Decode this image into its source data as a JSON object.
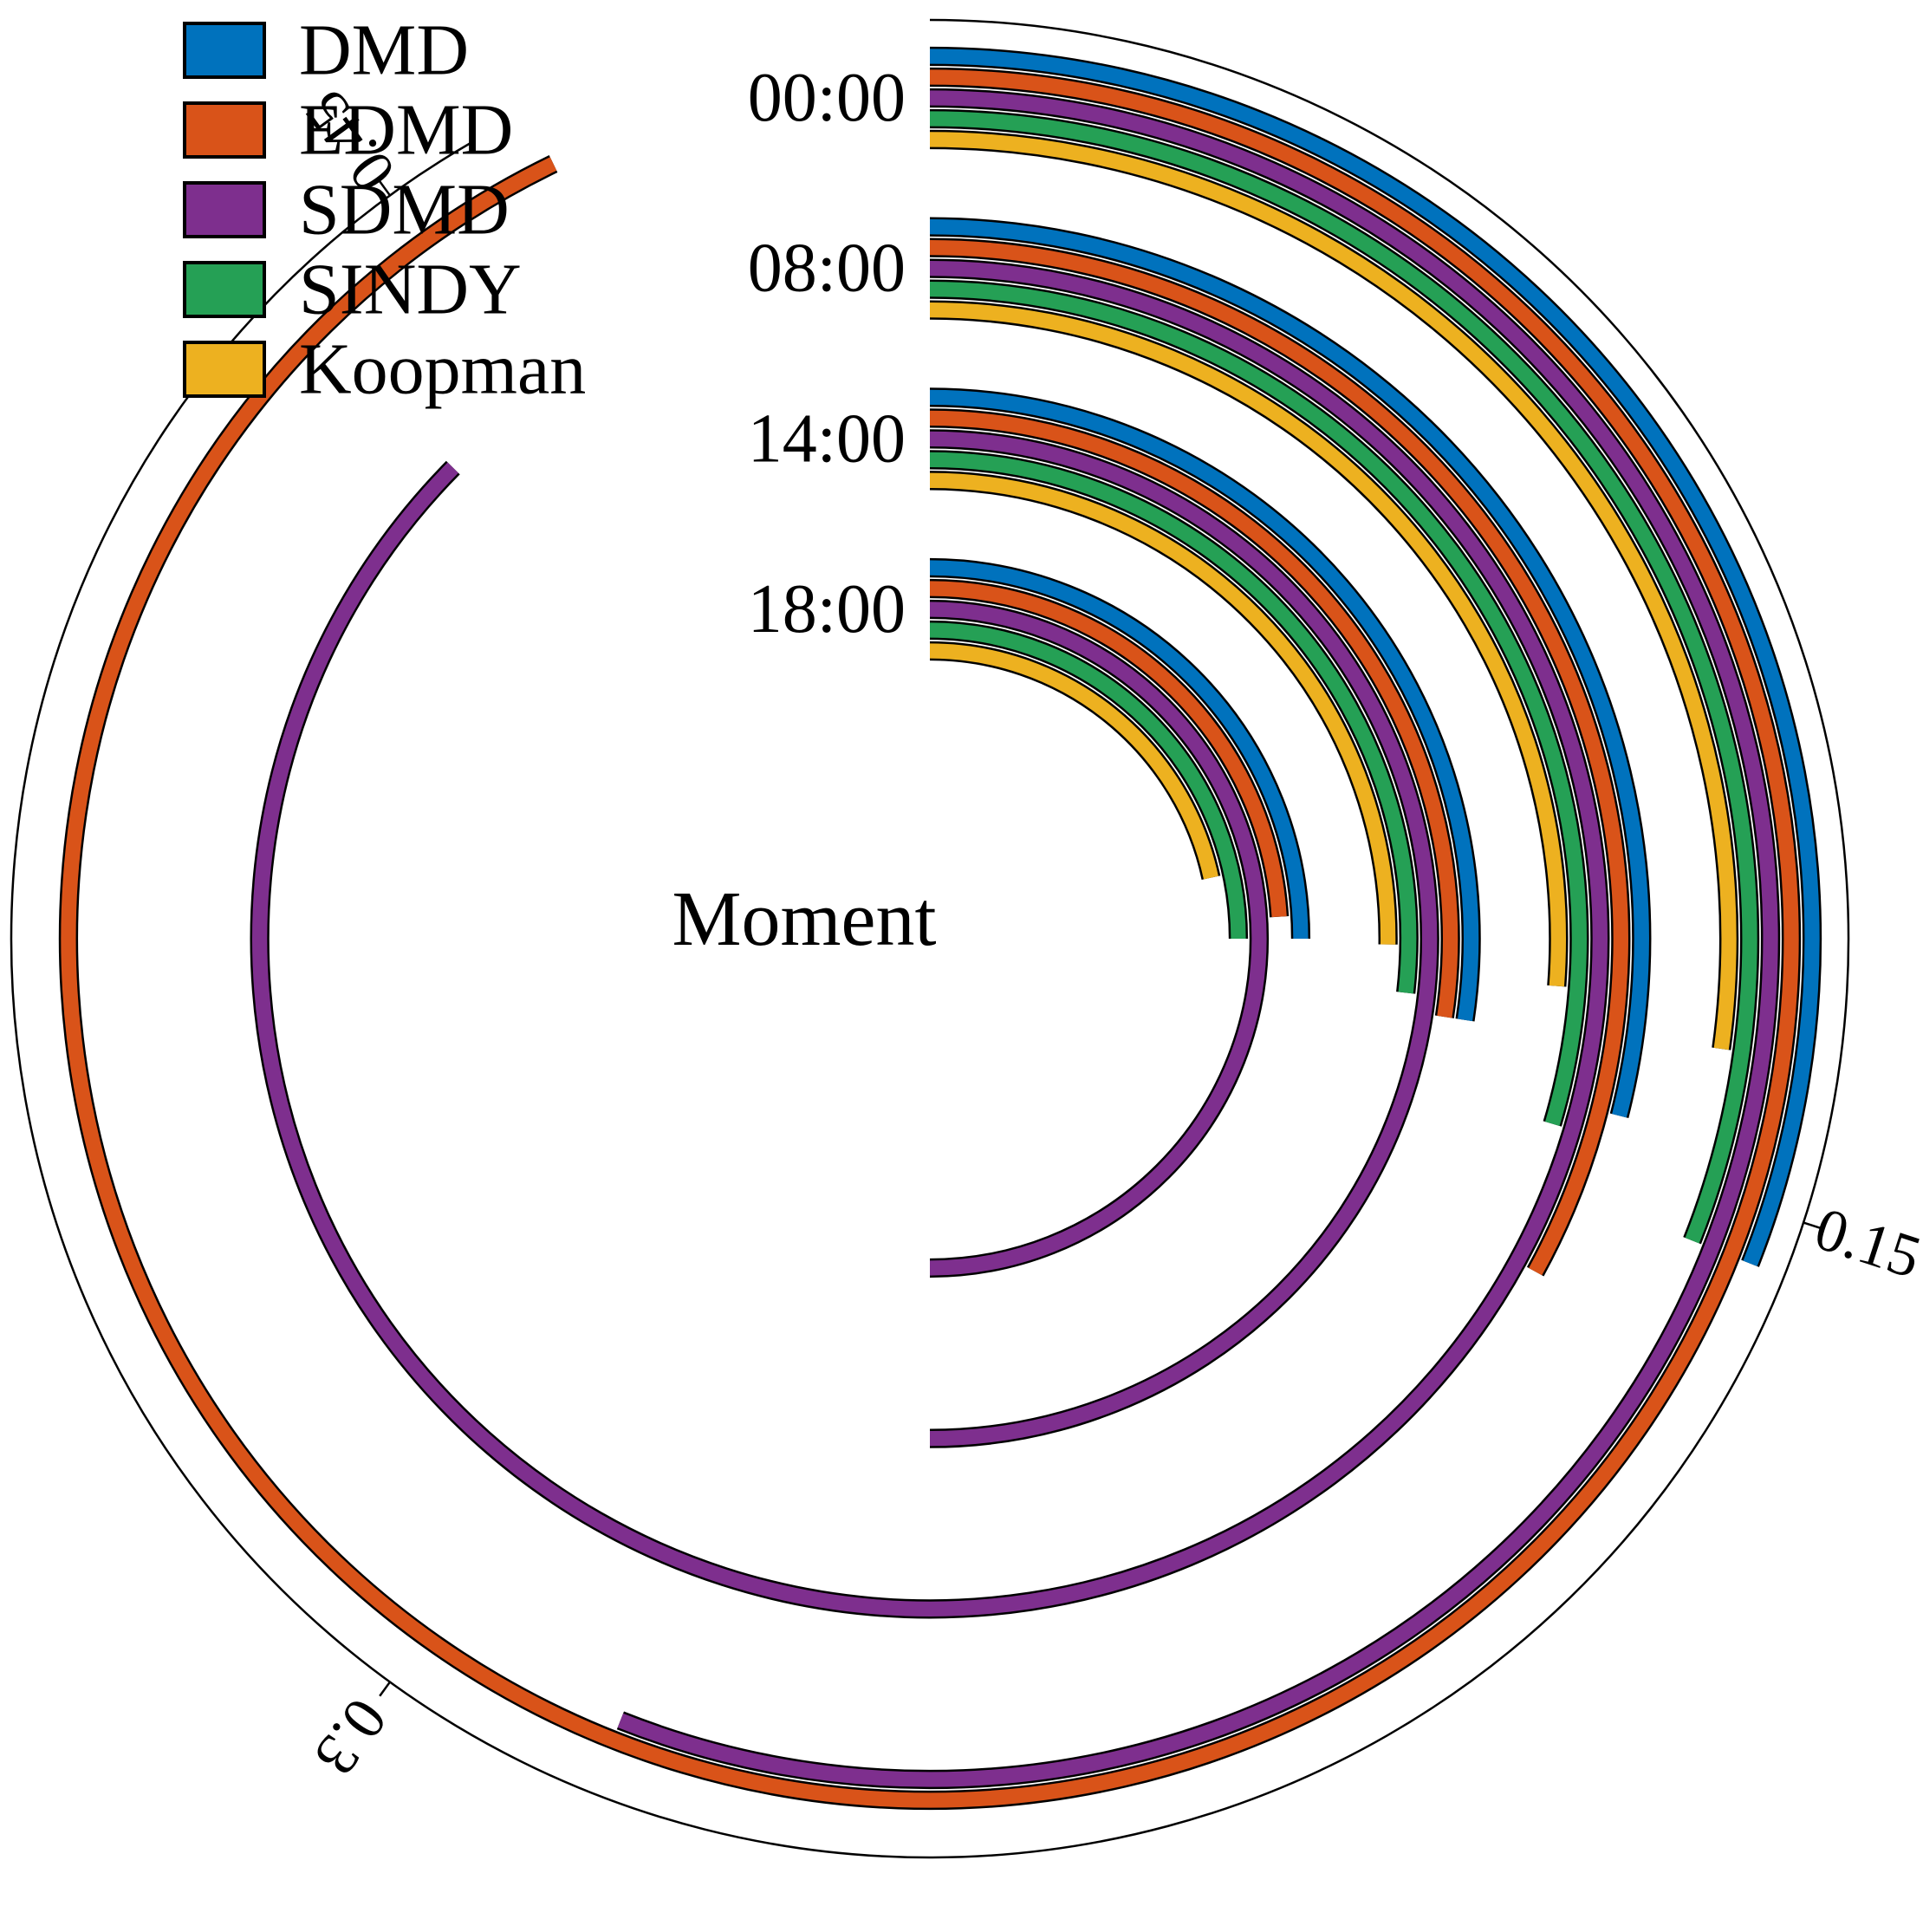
{
  "chart_data": {
    "type": "radial-bar",
    "title": "",
    "center_label": "Moment",
    "groups": [
      "00:00",
      "08:00",
      "14:00",
      "18:00"
    ],
    "series": [
      {
        "name": "DMD",
        "color": "#0072BD",
        "values": [
          0.155,
          0.145,
          0.137,
          0.125
        ]
      },
      {
        "name": "EDMD",
        "color": "#D95319",
        "values": [
          0.464,
          0.165,
          0.137,
          0.12
        ]
      },
      {
        "name": "SDMD",
        "color": "#7E2F8E",
        "values": [
          0.28,
          0.437,
          0.25,
          0.25
        ]
      },
      {
        "name": "SINDY",
        "color": "#25A055",
        "values": [
          0.155,
          0.148,
          0.134,
          0.125
        ]
      },
      {
        "name": "Koopman",
        "color": "#EDB120",
        "values": [
          0.136,
          0.131,
          0.126,
          0.108
        ]
      }
    ],
    "radial_axis": {
      "ticks": [
        0.15,
        0.3,
        0.45
      ],
      "tick_labels": [
        "0.15",
        "0.3",
        "0.45"
      ],
      "max": 0.5
    },
    "legend_position": "top-left"
  }
}
